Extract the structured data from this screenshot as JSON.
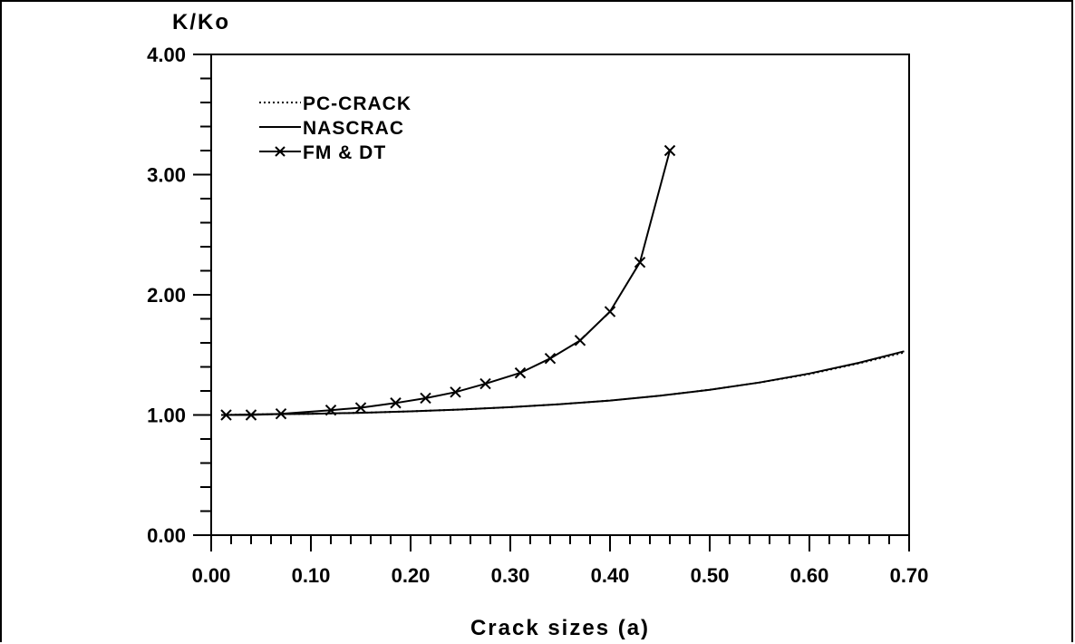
{
  "chart_data": {
    "type": "line",
    "ylabel": "K/Ko",
    "xlabel": "Crack sizes (a)",
    "xlim": [
      0.0,
      0.7
    ],
    "ylim": [
      0.0,
      4.0
    ],
    "xticks": [
      "0.00",
      "0.10",
      "0.20",
      "0.30",
      "0.40",
      "0.50",
      "0.60",
      "0.70"
    ],
    "yticks": [
      "0.00",
      "1.00",
      "2.00",
      "3.00",
      "4.00"
    ],
    "legend_position": "top-left",
    "grid": false,
    "series": [
      {
        "name": "PC-CRACK",
        "style": "dotted",
        "x": [
          0.01,
          0.05,
          0.1,
          0.15,
          0.2,
          0.25,
          0.3,
          0.35,
          0.4,
          0.45,
          0.5,
          0.55,
          0.6,
          0.65,
          0.695
        ],
        "y": [
          1.0,
          1.005,
          1.01,
          1.018,
          1.03,
          1.045,
          1.065,
          1.09,
          1.12,
          1.16,
          1.21,
          1.27,
          1.34,
          1.43,
          1.52
        ]
      },
      {
        "name": "NASCRAC",
        "style": "solid",
        "x": [
          0.01,
          0.05,
          0.1,
          0.15,
          0.2,
          0.25,
          0.3,
          0.35,
          0.4,
          0.45,
          0.5,
          0.55,
          0.6,
          0.65,
          0.695
        ],
        "y": [
          1.0,
          1.005,
          1.01,
          1.018,
          1.03,
          1.045,
          1.065,
          1.09,
          1.12,
          1.16,
          1.21,
          1.27,
          1.345,
          1.435,
          1.53
        ]
      },
      {
        "name": "FM & DT",
        "style": "solid-x-markers",
        "x": [
          0.015,
          0.04,
          0.07,
          0.12,
          0.15,
          0.185,
          0.215,
          0.245,
          0.275,
          0.31,
          0.34,
          0.37,
          0.4,
          0.43,
          0.46
        ],
        "y": [
          1.0,
          1.0,
          1.01,
          1.04,
          1.06,
          1.1,
          1.14,
          1.19,
          1.26,
          1.35,
          1.47,
          1.62,
          1.86,
          2.27,
          3.2
        ]
      }
    ]
  }
}
